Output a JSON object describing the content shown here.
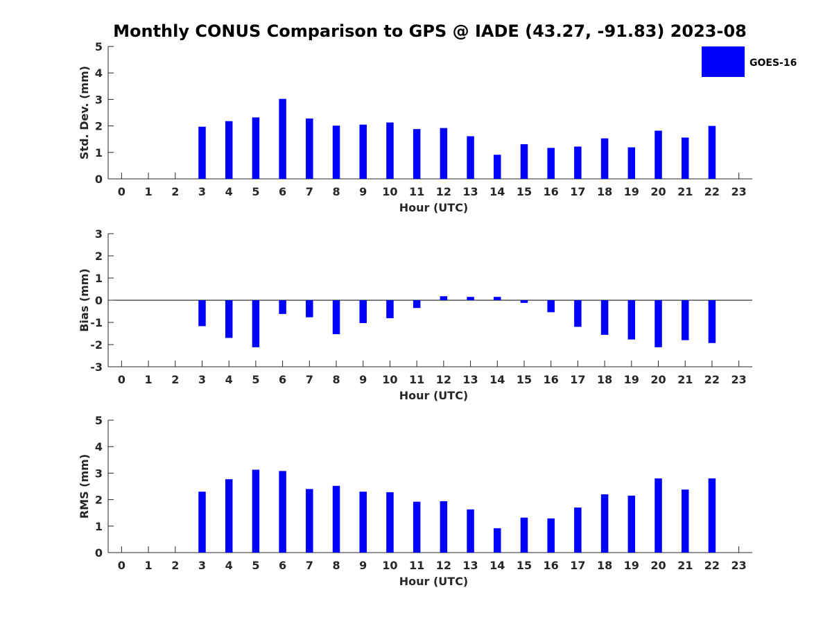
{
  "title": "Monthly CONUS Comparison to GPS @ IADE (43.27, -91.83) 2023-08",
  "legend": {
    "label": "GOES-16",
    "color": "#0000ff"
  },
  "chart_data": [
    {
      "type": "bar",
      "name": "std-dev",
      "xlabel": "Hour (UTC)",
      "ylabel": "Std. Dev. (mm)",
      "categories": [
        "0",
        "1",
        "2",
        "3",
        "4",
        "5",
        "6",
        "7",
        "8",
        "9",
        "10",
        "11",
        "12",
        "13",
        "14",
        "15",
        "16",
        "17",
        "18",
        "19",
        "20",
        "21",
        "22",
        "23"
      ],
      "xlim": [
        -0.5,
        23.5
      ],
      "ylim": [
        0,
        5
      ],
      "yticks": [
        "0",
        "1",
        "2",
        "3",
        "4",
        "5"
      ],
      "series": [
        {
          "name": "GOES-16",
          "values": [
            null,
            null,
            null,
            1.97,
            2.18,
            2.32,
            3.02,
            2.28,
            2.01,
            2.05,
            2.13,
            1.88,
            1.92,
            1.61,
            0.91,
            1.31,
            1.17,
            1.22,
            1.53,
            1.19,
            1.82,
            1.56,
            2.0,
            null
          ]
        }
      ]
    },
    {
      "type": "bar",
      "name": "bias",
      "xlabel": "Hour (UTC)",
      "ylabel": "Bias (mm)",
      "categories": [
        "0",
        "1",
        "2",
        "3",
        "4",
        "5",
        "6",
        "7",
        "8",
        "9",
        "10",
        "11",
        "12",
        "13",
        "14",
        "15",
        "16",
        "17",
        "18",
        "19",
        "20",
        "21",
        "22",
        "23"
      ],
      "xlim": [
        -0.5,
        23.5
      ],
      "ylim": [
        -3,
        3
      ],
      "yticks": [
        "-3",
        "-2",
        "-1",
        "0",
        "1",
        "2",
        "3"
      ],
      "series": [
        {
          "name": "GOES-16",
          "values": [
            null,
            null,
            null,
            -1.17,
            -1.7,
            -2.12,
            -0.62,
            -0.77,
            -1.53,
            -1.03,
            -0.81,
            -0.35,
            0.18,
            0.15,
            0.15,
            -0.12,
            -0.54,
            -1.2,
            -1.56,
            -1.77,
            -2.12,
            -1.8,
            -1.93,
            null
          ]
        }
      ]
    },
    {
      "type": "bar",
      "name": "rms",
      "xlabel": "Hour (UTC)",
      "ylabel": "RMS (mm)",
      "categories": [
        "0",
        "1",
        "2",
        "3",
        "4",
        "5",
        "6",
        "7",
        "8",
        "9",
        "10",
        "11",
        "12",
        "13",
        "14",
        "15",
        "16",
        "17",
        "18",
        "19",
        "20",
        "21",
        "22",
        "23"
      ],
      "xlim": [
        -0.5,
        23.5
      ],
      "ylim": [
        0,
        5
      ],
      "yticks": [
        "0",
        "1",
        "2",
        "3",
        "4",
        "5"
      ],
      "series": [
        {
          "name": "GOES-16",
          "values": [
            null,
            null,
            null,
            2.3,
            2.77,
            3.13,
            3.08,
            2.4,
            2.52,
            2.3,
            2.28,
            1.92,
            1.94,
            1.63,
            0.92,
            1.32,
            1.29,
            1.7,
            2.2,
            2.15,
            2.8,
            2.38,
            2.8,
            null
          ]
        }
      ]
    }
  ]
}
